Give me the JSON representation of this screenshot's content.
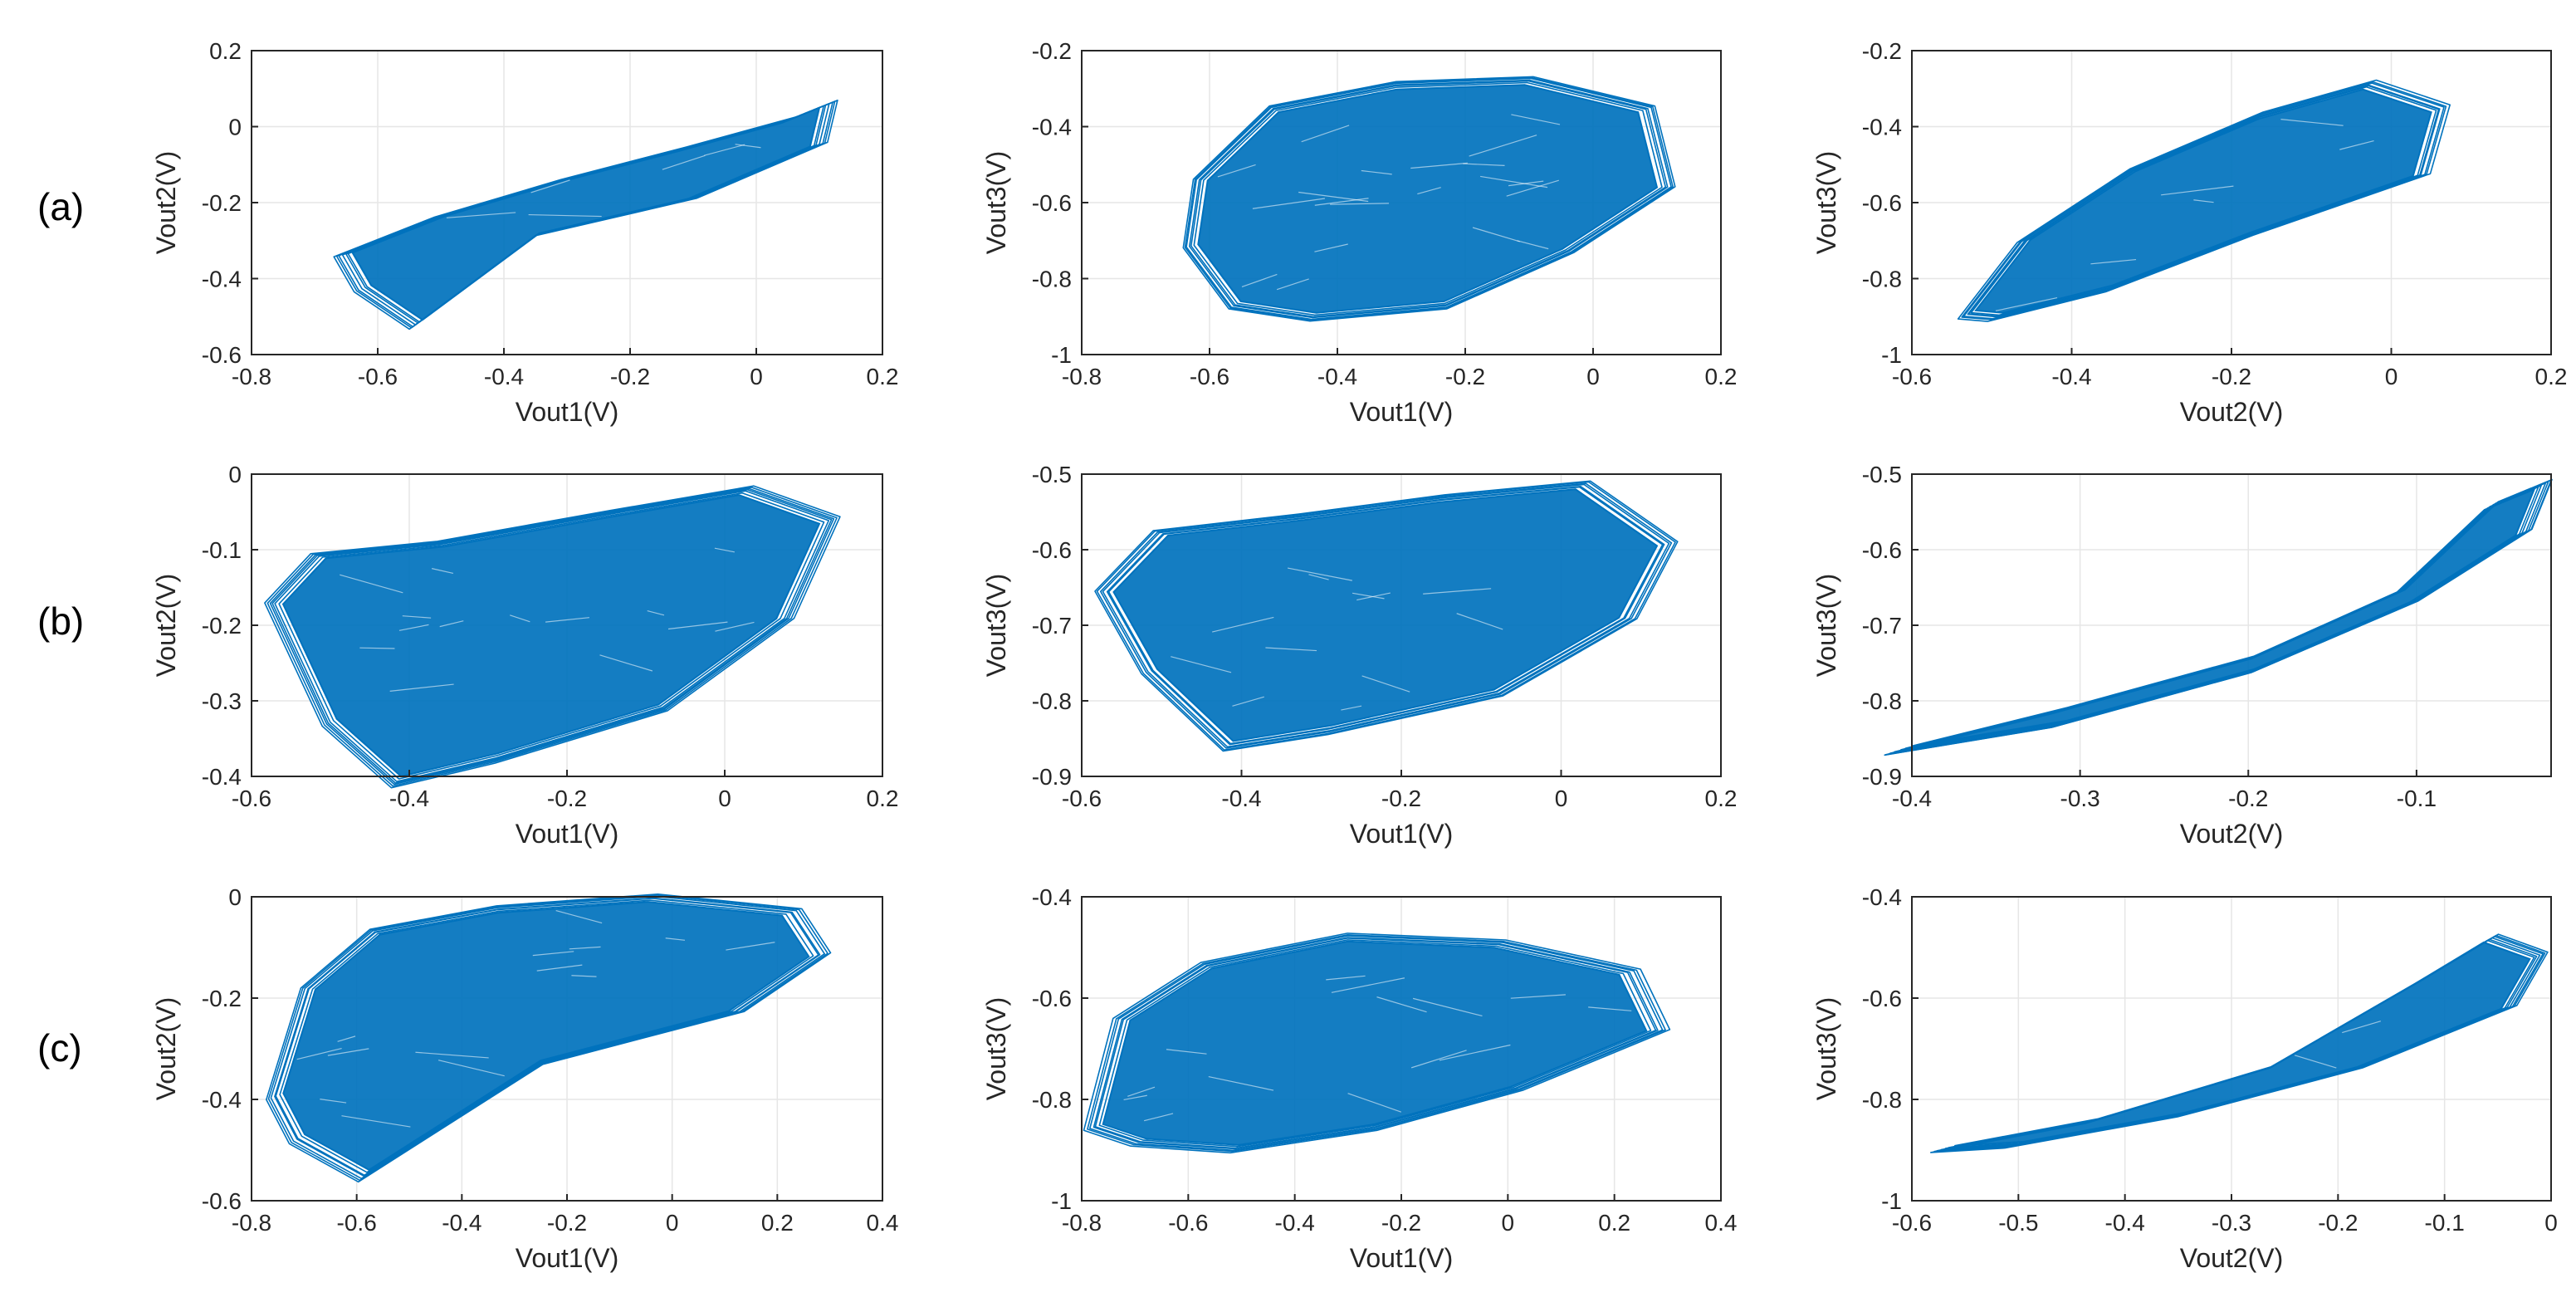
{
  "figure": {
    "row_labels": [
      "(a)",
      "(b)",
      "(c)"
    ],
    "trace_color": "#0072BD",
    "grid_color": "#e6e6e6",
    "axis_color": "#262626"
  },
  "chart_data": [
    {
      "type": "scatter",
      "title": "",
      "xlabel": "Vout1(V)",
      "ylabel": "Vout2(V)",
      "xlim": [
        -0.8,
        0.2
      ],
      "ylim": [
        -0.6,
        0.2
      ],
      "xticks": [
        -0.8,
        -0.6,
        -0.4,
        -0.2,
        0,
        0.2
      ],
      "xtick_labels": [
        "-0.8",
        "-0.6",
        "-0.4",
        "-0.2",
        "0",
        "0.2"
      ],
      "yticks": [
        -0.6,
        -0.4,
        -0.2,
        0,
        0.2
      ],
      "ytick_labels": [
        "-0.6",
        "-0.4",
        "-0.2",
        "0",
        "0.2"
      ],
      "attractor": {
        "x_range": [
          -0.64,
          0.1
        ],
        "y_range": [
          -0.52,
          0.05
        ]
      }
    },
    {
      "type": "scatter",
      "title": "",
      "xlabel": "Vout1(V)",
      "ylabel": "Vout3(V)",
      "xlim": [
        -0.8,
        0.2
      ],
      "ylim": [
        -1,
        -0.2
      ],
      "xticks": [
        -0.8,
        -0.6,
        -0.4,
        -0.2,
        0,
        0.2
      ],
      "xtick_labels": [
        "-0.8",
        "-0.6",
        "-0.4",
        "-0.2",
        "0",
        "0.2"
      ],
      "yticks": [
        -1,
        -0.8,
        -0.6,
        -0.4,
        -0.2
      ],
      "ytick_labels": [
        "-1",
        "-0.8",
        "-0.6",
        "-0.4",
        "-0.2"
      ],
      "attractor": {
        "x_range": [
          -0.64,
          0.1
        ],
        "y_range": [
          -0.89,
          -0.29
        ]
      }
    },
    {
      "type": "scatter",
      "title": "",
      "xlabel": "Vout2(V)",
      "ylabel": "Vout3(V)",
      "xlim": [
        -0.6,
        0.2
      ],
      "ylim": [
        -1,
        -0.2
      ],
      "xticks": [
        -0.6,
        -0.4,
        -0.2,
        0,
        0.2
      ],
      "xtick_labels": [
        "-0.6",
        "-0.4",
        "-0.2",
        "0",
        "0.2"
      ],
      "yticks": [
        -1,
        -0.8,
        -0.6,
        -0.4,
        -0.2
      ],
      "ytick_labels": [
        "-1",
        "-0.8",
        "-0.6",
        "-0.4",
        "-0.2"
      ],
      "attractor": {
        "x_range": [
          -0.52,
          0.05
        ],
        "y_range": [
          -0.89,
          -0.29
        ]
      }
    },
    {
      "type": "scatter",
      "title": "",
      "xlabel": "Vout1(V)",
      "ylabel": "Vout2(V)",
      "xlim": [
        -0.6,
        0.2
      ],
      "ylim": [
        -0.4,
        0
      ],
      "xticks": [
        -0.6,
        -0.4,
        -0.2,
        0,
        0.2
      ],
      "xtick_labels": [
        "-0.6",
        "-0.4",
        "-0.2",
        "0",
        "0.2"
      ],
      "yticks": [
        -0.4,
        -0.3,
        -0.2,
        -0.1,
        0
      ],
      "ytick_labels": [
        "-0.4",
        "-0.3",
        "-0.2",
        "-0.1",
        "0"
      ],
      "attractor": {
        "x_range": [
          -0.56,
          0.12
        ],
        "y_range": [
          -0.4,
          -0.02
        ]
      }
    },
    {
      "type": "scatter",
      "title": "",
      "xlabel": "Vout1(V)",
      "ylabel": "Vout3(V)",
      "xlim": [
        -0.6,
        0.2
      ],
      "ylim": [
        -0.9,
        -0.5
      ],
      "xticks": [
        -0.6,
        -0.4,
        -0.2,
        0,
        0.2
      ],
      "xtick_labels": [
        "-0.6",
        "-0.4",
        "-0.2",
        "0",
        "0.2"
      ],
      "yticks": [
        -0.9,
        -0.8,
        -0.7,
        -0.6,
        -0.5
      ],
      "ytick_labels": [
        "-0.9",
        "-0.8",
        "-0.7",
        "-0.6",
        "-0.5"
      ],
      "attractor": {
        "x_range": [
          -0.56,
          0.12
        ],
        "y_range": [
          -0.86,
          -0.52
        ]
      }
    },
    {
      "type": "scatter",
      "title": "",
      "xlabel": "Vout2(V)",
      "ylabel": "Vout3(V)",
      "xlim": [
        -0.4,
        -0.02
      ],
      "ylim": [
        -0.9,
        -0.5
      ],
      "xticks": [
        -0.4,
        -0.3,
        -0.2,
        -0.1
      ],
      "xtick_labels": [
        "-0.4",
        "-0.3",
        "-0.2",
        "-0.1"
      ],
      "yticks": [
        -0.9,
        -0.8,
        -0.7,
        -0.6,
        -0.5
      ],
      "ytick_labels": [
        "-0.9",
        "-0.8",
        "-0.7",
        "-0.6",
        "-0.5"
      ],
      "attractor": {
        "x_range": [
          -0.4,
          -0.03
        ],
        "y_range": [
          -0.86,
          -0.52
        ]
      }
    },
    {
      "type": "scatter",
      "title": "",
      "xlabel": "Vout1(V)",
      "ylabel": "Vout2(V)",
      "xlim": [
        -0.8,
        0.4
      ],
      "ylim": [
        -0.6,
        0
      ],
      "xticks": [
        -0.8,
        -0.6,
        -0.4,
        -0.2,
        0,
        0.2,
        0.4
      ],
      "xtick_labels": [
        "-0.8",
        "-0.6",
        "-0.4",
        "-0.2",
        "0",
        "0.2",
        "0.4"
      ],
      "yticks": [
        -0.6,
        -0.4,
        -0.2,
        0
      ],
      "ytick_labels": [
        "-0.6",
        "-0.4",
        "-0.2",
        "0"
      ],
      "attractor": {
        "x_range": [
          -0.76,
          0.26
        ],
        "y_range": [
          -0.55,
          -0.01
        ]
      }
    },
    {
      "type": "scatter",
      "title": "",
      "xlabel": "Vout1(V)",
      "ylabel": "Vout3(V)",
      "xlim": [
        -0.8,
        0.4
      ],
      "ylim": [
        -1,
        -0.4
      ],
      "xticks": [
        -0.8,
        -0.6,
        -0.4,
        -0.2,
        0,
        0.2,
        0.4
      ],
      "xtick_labels": [
        "-0.8",
        "-0.6",
        "-0.4",
        "-0.2",
        "0",
        "0.2",
        "0.4"
      ],
      "yticks": [
        -1,
        -0.8,
        -0.6,
        -0.4
      ],
      "ytick_labels": [
        "-1",
        "-0.8",
        "-0.6",
        "-0.4"
      ],
      "attractor": {
        "x_range": [
          -0.76,
          0.26
        ],
        "y_range": [
          -0.89,
          -0.48
        ]
      }
    },
    {
      "type": "scatter",
      "title": "",
      "xlabel": "Vout2(V)",
      "ylabel": "Vout3(V)",
      "xlim": [
        -0.6,
        0
      ],
      "ylim": [
        -1,
        -0.4
      ],
      "xticks": [
        -0.6,
        -0.5,
        -0.4,
        -0.3,
        -0.2,
        -0.1,
        0
      ],
      "xtick_labels": [
        "-0.6",
        "-0.5",
        "-0.4",
        "-0.3",
        "-0.2",
        "-0.1",
        "0"
      ],
      "yticks": [
        -1,
        -0.8,
        -0.6,
        -0.4
      ],
      "ytick_labels": [
        "-1",
        "-0.8",
        "-0.6",
        "-0.4"
      ],
      "attractor": {
        "x_range": [
          -0.56,
          -0.02
        ],
        "y_range": [
          -0.9,
          -0.49
        ]
      }
    }
  ]
}
